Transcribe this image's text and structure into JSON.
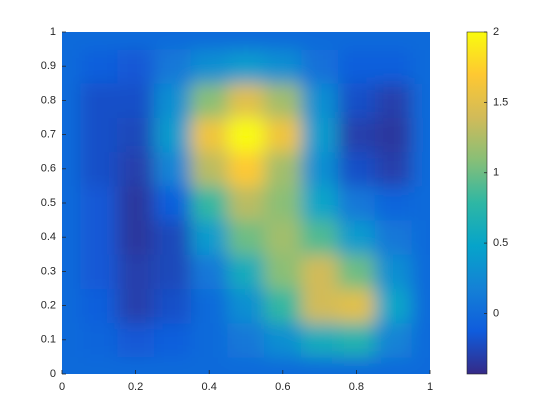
{
  "chart_data": {
    "type": "heatmap",
    "x": [
      0,
      0.1,
      0.2,
      0.3,
      0.4,
      0.5,
      0.6,
      0.7,
      0.8,
      0.9,
      1
    ],
    "y": [
      0,
      0.1,
      0.2,
      0.3,
      0.4,
      0.5,
      0.6,
      0.7,
      0.8,
      0.9,
      1
    ],
    "values": [
      [
        0,
        0,
        0,
        0,
        0,
        0,
        0,
        0,
        0,
        0,
        0
      ],
      [
        0,
        -0.05,
        -0.15,
        -0.1,
        0,
        0.1,
        0.3,
        0.6,
        0.7,
        0.2,
        0
      ],
      [
        0,
        -0.1,
        -0.3,
        -0.2,
        0,
        0.3,
        0.8,
        1.4,
        1.5,
        0.5,
        0
      ],
      [
        0,
        -0.15,
        -0.3,
        -0.25,
        0.1,
        0.6,
        1.1,
        1.4,
        1.0,
        0.3,
        0
      ],
      [
        0,
        -0.15,
        -0.35,
        -0.25,
        0.4,
        1.0,
        1.2,
        0.9,
        0.4,
        0.1,
        0
      ],
      [
        0,
        -0.15,
        -0.35,
        -0.1,
        0.8,
        1.3,
        1.1,
        0.5,
        0.1,
        -0.05,
        0
      ],
      [
        0,
        -0.2,
        -0.3,
        0.2,
        1.3,
        1.7,
        1.2,
        0.3,
        -0.2,
        -0.3,
        0
      ],
      [
        0,
        -0.2,
        -0.25,
        0.4,
        1.6,
        2.0,
        1.6,
        0.4,
        -0.3,
        -0.35,
        0
      ],
      [
        0,
        -0.2,
        -0.2,
        0.3,
        1.1,
        1.5,
        1.2,
        0.3,
        -0.2,
        -0.3,
        0
      ],
      [
        0,
        -0.1,
        -0.15,
        0.1,
        0.3,
        0.4,
        0.3,
        0.05,
        -0.1,
        -0.1,
        0
      ],
      [
        0,
        0,
        0,
        0,
        0,
        0,
        0,
        0,
        0,
        0,
        0
      ]
    ],
    "xlim": [
      0,
      1
    ],
    "xticks": [
      0,
      0.2,
      0.4,
      0.6,
      0.8,
      1
    ],
    "ylim": [
      0,
      1
    ],
    "yticks": [
      0,
      0.1,
      0.2,
      0.3,
      0.4,
      0.5,
      0.6,
      0.7,
      0.8,
      0.9,
      1
    ],
    "clim": [
      -0.43,
      2
    ],
    "cticks": [
      0,
      0.5,
      1,
      1.5,
      2
    ],
    "colormap": [
      "#352a87",
      "#0f5cdd",
      "#1481d6",
      "#06a4ca",
      "#2eb7a4",
      "#87bf77",
      "#d1bb59",
      "#fec832",
      "#f9fb0e"
    ]
  }
}
